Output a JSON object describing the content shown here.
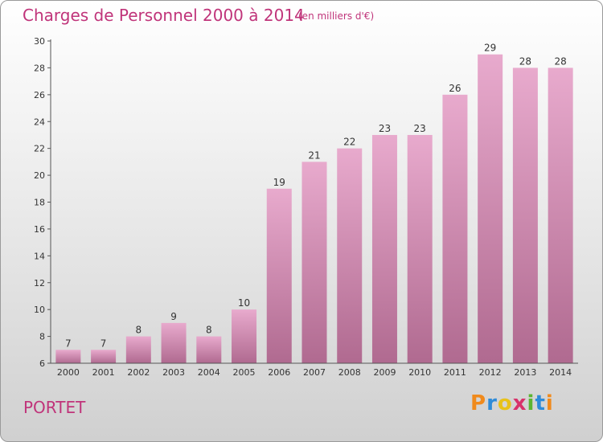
{
  "header": {
    "title": "Charges de Personnel 2000 à 2014",
    "unit": "(en milliers d'€)"
  },
  "footer": {
    "commune": "PORTET",
    "logo_text": "Proxiti",
    "logo_colors": [
      "#f08a1c",
      "#2e8bd8",
      "#e8c21a",
      "#d8326a",
      "#5bb531",
      "#2e8bd8",
      "#f08a1c"
    ]
  },
  "chart_data": {
    "type": "bar",
    "title": "Charges de Personnel 2000 à 2014",
    "subtitle": "(en milliers d'€)",
    "categories": [
      "2000",
      "2001",
      "2002",
      "2003",
      "2004",
      "2005",
      "2006",
      "2007",
      "2008",
      "2009",
      "2010",
      "2011",
      "2012",
      "2013",
      "2014"
    ],
    "values": [
      7,
      7,
      8,
      9,
      8,
      10,
      19,
      21,
      22,
      23,
      23,
      26,
      29,
      28,
      28
    ],
    "ylim": [
      6,
      30
    ],
    "yticks": [
      6,
      8,
      10,
      12,
      14,
      16,
      18,
      20,
      22,
      24,
      26,
      28,
      30
    ],
    "grid": false,
    "bar_color_top": "#e8aacd",
    "bar_color_bottom": "#b06a90",
    "axis_color": "#555555",
    "label_color": "#333333"
  }
}
